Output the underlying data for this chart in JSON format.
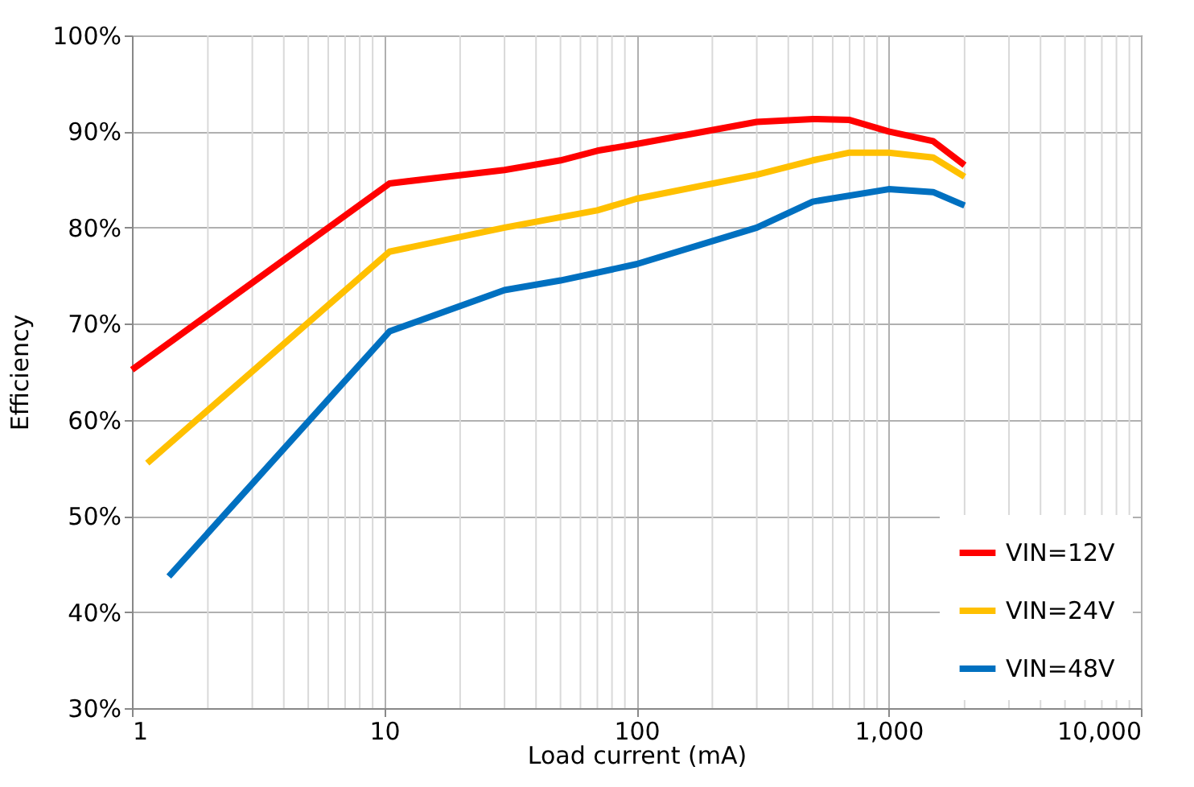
{
  "chart_data": {
    "type": "line",
    "xlabel": "Load current (mA)",
    "ylabel": "Efficiency",
    "log": "x",
    "xlim": [
      1,
      10000
    ],
    "xticks": [
      1,
      10,
      100,
      {
        "value": 1000,
        "label": "1,000"
      },
      {
        "value": 10000,
        "label": "10,000"
      }
    ],
    "ylim": [
      30,
      100
    ],
    "yticks": [
      {
        "value": 30,
        "label": "30%"
      },
      {
        "value": 40,
        "label": "40%"
      },
      {
        "value": 50,
        "label": "50%"
      },
      {
        "value": 60,
        "label": "60%"
      },
      {
        "value": 70,
        "label": "70%"
      },
      {
        "value": 80,
        "label": "80%"
      },
      {
        "value": 90,
        "label": "90%"
      },
      {
        "value": 100,
        "label": "100%"
      }
    ],
    "grid": true,
    "legend": "bottom right",
    "line_style": "solid",
    "marker": "none",
    "series": [
      {
        "name": "VIN=12V",
        "color": "#ff0000",
        "x": [
          1,
          10.5,
          30,
          50,
          70,
          100,
          300,
          500,
          700,
          1000,
          1500,
          2000
        ],
        "values": [
          65.2,
          84.6,
          86,
          87,
          88,
          88.7,
          91,
          91.3,
          91.2,
          90,
          89,
          86.5
        ]
      },
      {
        "name": "VIN=24V",
        "color": "#ffc000",
        "x": [
          1.15,
          10.5,
          30,
          70,
          100,
          300,
          500,
          700,
          1000,
          1500,
          2000
        ],
        "values": [
          55.5,
          77.5,
          80,
          81.8,
          83,
          85.5,
          87,
          87.8,
          87.8,
          87.3,
          85.3
        ]
      },
      {
        "name": "VIN=48V",
        "color": "#0070c0",
        "x": [
          1.4,
          10.5,
          30,
          50,
          100,
          300,
          500,
          1000,
          1500,
          2000
        ],
        "values": [
          43.7,
          69.2,
          73.5,
          74.5,
          76.2,
          80,
          82.7,
          84,
          83.7,
          82.3
        ]
      }
    ]
  }
}
